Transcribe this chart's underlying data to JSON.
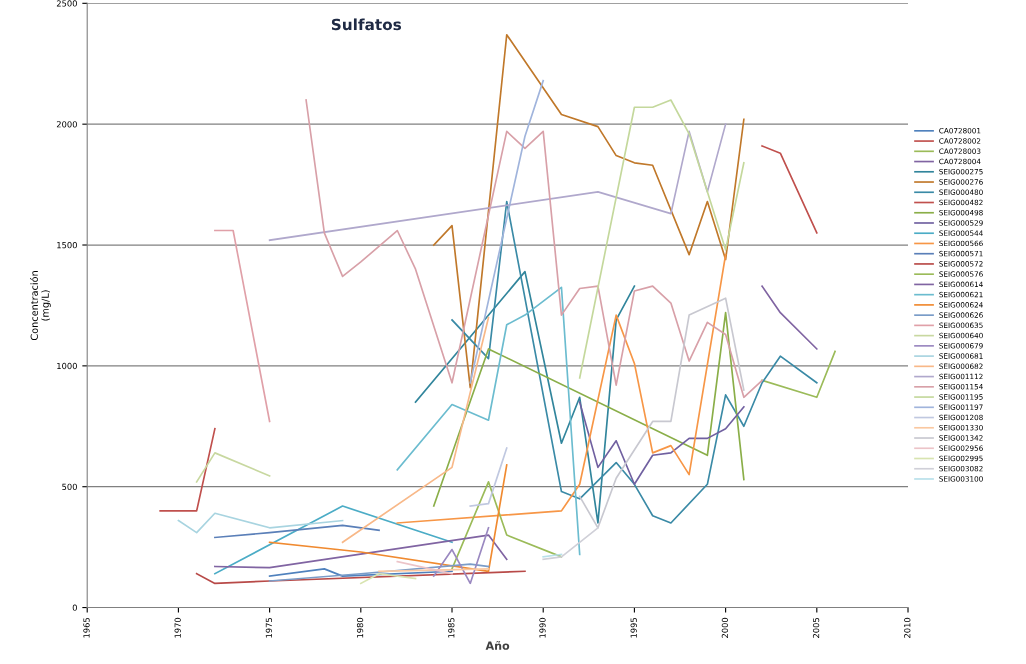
{
  "chart_data": {
    "type": "line",
    "title": "Sulfatos",
    "xlabel": "Año",
    "ylabel": "Concentración\n(mg/L)",
    "xlim": [
      1965,
      2010
    ],
    "xticks": [
      1965,
      1970,
      1975,
      1980,
      1985,
      1990,
      1995,
      2000,
      2005,
      2010
    ],
    "ylim": [
      0,
      2500
    ],
    "yticks": [
      0,
      500,
      1000,
      1500,
      2000,
      2500
    ],
    "grid": "y",
    "legend": "right",
    "marker": "none",
    "line_style": "solid",
    "series": [
      {
        "name": "CA0728001",
        "color": "#4f81bd",
        "x": [
          1975,
          1978,
          1979,
          1985
        ],
        "values": [
          130,
          160,
          130,
          150
        ]
      },
      {
        "name": "CA0728002",
        "color": "#c0504d",
        "x": [
          2002,
          2003,
          2005
        ],
        "values": [
          1910,
          1880,
          1550
        ]
      },
      {
        "name": "CA0728003",
        "color": "#9bbb59",
        "x": [
          2002,
          2005,
          2006
        ],
        "values": [
          940,
          870,
          1060
        ]
      },
      {
        "name": "CA0728004",
        "color": "#8064a2",
        "x": [
          2002,
          2003,
          2005
        ],
        "values": [
          1330,
          1220,
          1070
        ]
      },
      {
        "name": "SEIG000275",
        "color": "#31859c",
        "x": [
          1983,
          1989,
          1991,
          1992,
          1993,
          1994,
          1995
        ],
        "values": [
          850,
          1390,
          680,
          870,
          350,
          1190,
          1330
        ]
      },
      {
        "name": "SEIG000276",
        "color": "#c0782a",
        "x": [
          1984,
          1985,
          1986,
          1988,
          1991,
          1993,
          1994,
          1995,
          1996,
          1998,
          1999,
          2000,
          2001
        ],
        "values": [
          1500,
          1580,
          910,
          2370,
          2040,
          1990,
          1870,
          1840,
          1830,
          1460,
          1680,
          1440,
          2020
        ]
      },
      {
        "name": "SEIG000480",
        "color": "#3a8aa6",
        "x": [
          1985,
          1987,
          1988,
          1991,
          1992,
          1994,
          1995,
          1996,
          1997,
          1999,
          2000,
          2001,
          2002,
          2003,
          2005
        ],
        "values": [
          1190,
          1030,
          1680,
          480,
          450,
          600,
          510,
          380,
          350,
          510,
          880,
          750,
          930,
          1040,
          930
        ]
      },
      {
        "name": "SEIG000482",
        "color": "#c0504d",
        "x": [
          1969,
          1971,
          1972
        ],
        "values": [
          400,
          400,
          740
        ]
      },
      {
        "name": "SEIG000498",
        "color": "#8aae48",
        "x": [
          1984,
          1987,
          1999,
          2000,
          2001
        ],
        "values": [
          420,
          1070,
          630,
          1220,
          530
        ]
      },
      {
        "name": "SEIG000529",
        "color": "#7060a0",
        "x": [
          1992,
          1993,
          1994,
          1995,
          1996,
          1997,
          1998,
          1999,
          2000,
          2001
        ],
        "values": [
          850,
          580,
          690,
          510,
          630,
          640,
          700,
          700,
          740,
          830
        ]
      },
      {
        "name": "SEIG000544",
        "color": "#4bacc6",
        "x": [
          1972,
          1979,
          1985
        ],
        "values": [
          140,
          420,
          270
        ]
      },
      {
        "name": "SEIG000566",
        "color": "#f79646",
        "x": [
          1982,
          1991,
          1992,
          1994,
          1995,
          1996,
          1997,
          1998,
          2000
        ],
        "values": [
          350,
          400,
          510,
          1210,
          1010,
          640,
          670,
          550,
          1460
        ]
      },
      {
        "name": "SEIG000571",
        "color": "#5a7fb8",
        "x": [
          1972,
          1975,
          1979,
          1981
        ],
        "values": [
          290,
          310,
          340,
          320
        ]
      },
      {
        "name": "SEIG000572",
        "color": "#b84a48",
        "x": [
          1971,
          1972,
          1975,
          1989
        ],
        "values": [
          140,
          100,
          110,
          150
        ]
      },
      {
        "name": "SEIG000576",
        "color": "#9bbb59",
        "x": [
          1985,
          1987,
          1988,
          1991
        ],
        "values": [
          160,
          520,
          300,
          210
        ]
      },
      {
        "name": "SEIG000614",
        "color": "#8064a2",
        "x": [
          1972,
          1975,
          1987,
          1988
        ],
        "values": [
          170,
          165,
          300,
          200
        ]
      },
      {
        "name": "SEIG000621",
        "color": "#6bbccf",
        "x": [
          1982,
          1985,
          1987,
          1988,
          1989,
          1991,
          1992
        ],
        "values": [
          570,
          840,
          775,
          1170,
          1210,
          1325,
          220
        ]
      },
      {
        "name": "SEIG000624",
        "color": "#f08a30",
        "x": [
          1975,
          1980,
          1987,
          1988
        ],
        "values": [
          270,
          230,
          150,
          590
        ]
      },
      {
        "name": "SEIG000626",
        "color": "#7a9cc8",
        "x": [
          1975,
          1980,
          1986,
          1987
        ],
        "values": [
          110,
          140,
          180,
          170
        ]
      },
      {
        "name": "SEIG000635",
        "color": "#e0a0a8",
        "x": [
          1972,
          1973,
          1975
        ],
        "values": [
          1560,
          1560,
          770
        ]
      },
      {
        "name": "SEIG000640",
        "color": "#c8d8a0",
        "x": [
          1971,
          1972,
          1975
        ],
        "values": [
          520,
          640,
          545
        ]
      },
      {
        "name": "SEIG000679",
        "color": "#9a88c0",
        "x": [
          1984,
          1985,
          1986,
          1987
        ],
        "values": [
          130,
          240,
          100,
          330
        ]
      },
      {
        "name": "SEIG000681",
        "color": "#a8d4e0",
        "x": [
          1970,
          1971,
          1972,
          1975,
          1979
        ],
        "values": [
          360,
          310,
          390,
          330,
          360
        ]
      },
      {
        "name": "SEIG000682",
        "color": "#f8b888",
        "x": [
          1979,
          1985,
          1987
        ],
        "values": [
          270,
          580,
          1200
        ]
      },
      {
        "name": "SEIG001112",
        "color": "#b0a8cc",
        "x": [
          1975,
          1993,
          1997,
          1998,
          1999,
          2000
        ],
        "values": [
          1520,
          1720,
          1630,
          1970,
          1720,
          2000
        ]
      },
      {
        "name": "SEIG001154",
        "color": "#d8a0a8",
        "x": [
          1977,
          1978,
          1979,
          1980,
          1982,
          1983,
          1985,
          1988,
          1989,
          1990,
          1991,
          1992,
          1993,
          1994,
          1995,
          1996,
          1997,
          1998,
          1999,
          2000,
          2001,
          2002
        ],
        "values": [
          2100,
          1550,
          1370,
          1430,
          1560,
          1400,
          930,
          1970,
          1900,
          1970,
          1210,
          1320,
          1330,
          920,
          1310,
          1330,
          1260,
          1020,
          1180,
          1130,
          870,
          940
        ]
      },
      {
        "name": "SEIG001195",
        "color": "#c4d89c",
        "x": [
          1992,
          1995,
          1996,
          1997,
          1998,
          2000,
          2001
        ],
        "values": [
          950,
          2070,
          2070,
          2100,
          1960,
          1480,
          1840
        ]
      },
      {
        "name": "SEIG001197",
        "color": "#a0b4dc",
        "x": [
          1986,
          1989,
          1990
        ],
        "values": [
          930,
          1950,
          2180
        ]
      },
      {
        "name": "SEIG001208",
        "color": "#c0c8e0",
        "x": [
          1986,
          1987,
          1988
        ],
        "values": [
          420,
          430,
          660
        ]
      },
      {
        "name": "SEIG001330",
        "color": "#fac8a0",
        "x": [
          1981,
          1987
        ],
        "values": [
          150,
          160
        ]
      },
      {
        "name": "SEIG001342",
        "color": "#c8c8d0",
        "x": [
          1992,
          1993,
          1994,
          1996,
          1997,
          1998,
          2000,
          2001
        ],
        "values": [
          460,
          330,
          535,
          770,
          770,
          1210,
          1280,
          900
        ]
      },
      {
        "name": "SEIG002956",
        "color": "#ecc4c8",
        "x": [
          1982,
          1985
        ],
        "values": [
          190,
          140
        ]
      },
      {
        "name": "SEIG002995",
        "color": "#d8e4b0",
        "x": [
          1980,
          1981,
          1983
        ],
        "values": [
          100,
          140,
          120
        ]
      },
      {
        "name": "SEIG003082",
        "color": "#d0d0d8",
        "x": [
          1990,
          1991,
          1993
        ],
        "values": [
          200,
          210,
          330
        ]
      },
      {
        "name": "SEIG003100",
        "color": "#b8e0ea",
        "x": [
          1990,
          1991
        ],
        "values": [
          210,
          220
        ]
      }
    ]
  }
}
